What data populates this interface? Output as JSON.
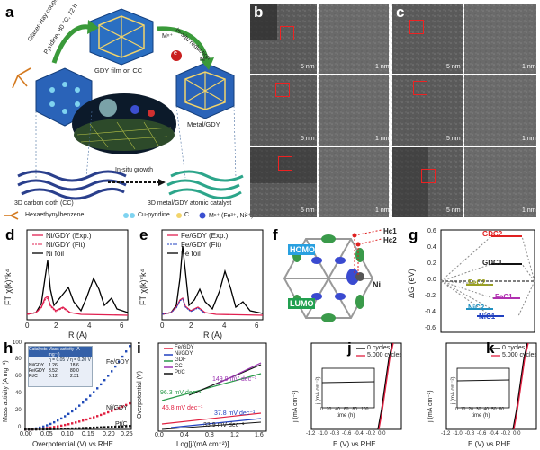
{
  "panel_letters": [
    "a",
    "b",
    "c",
    "d",
    "e",
    "f",
    "g",
    "h",
    "i",
    "j",
    "k"
  ],
  "schematic": {
    "glaser_text": "Glaser-Hay coupling reaction",
    "pyridine_text": "Pyridine, 80 °C, 72 h",
    "gdy_film": "GDY film on  CC",
    "insitu_reduction": "In-situ reduction",
    "m_n_plus": "Mⁿ⁺",
    "e_label": "e",
    "m_zero": "M⁰",
    "metal_gdy": "Metal/GDY",
    "carbon_cloth": "3D carbon cloth (CC)",
    "insitu_growth": "In-situ growth",
    "atomic_catalyst": "3D metal/GDY atomic catalyst",
    "legend_hexa": "Hexaethynylbenzene",
    "legend_cu": "Cu-pyridine",
    "legend_c": "C",
    "legend_m": "Mⁿ⁺ (Fe³⁺, Ni²⁺)"
  },
  "tem": {
    "scale_5nm": "5 nm",
    "scale_1nm": "1 nm"
  },
  "panel_d": {
    "ylabel": "FT χ(k)*k⁴",
    "xlabel": "R (Å)",
    "legend": [
      "Ni/GDY (Exp.)",
      "Ni/GDY (Fit)",
      "Ni foil"
    ],
    "xticks": [
      "0",
      "2",
      "4",
      "6"
    ]
  },
  "panel_e": {
    "ylabel": "FT χ(k)*k⁴",
    "xlabel": "R (Å)",
    "legend": [
      "Fe/GDY (Exp.)",
      "Fe/GDY (Fit)",
      "Fe foil"
    ],
    "xticks": [
      "0",
      "2",
      "4",
      "6"
    ]
  },
  "panel_f": {
    "hc1": "Hc1",
    "hc2": "Hc2",
    "homo": "HOMO",
    "lumo": "LUMO",
    "ni": "Ni"
  },
  "panel_g": {
    "ylabel": "ΔG (eV)",
    "yticks": [
      "0.6",
      "0.4",
      "0.2",
      "0.0",
      "-0.2",
      "-0.4",
      "-0.6"
    ],
    "levels": [
      "GDC2",
      "GDC1",
      "FeC2",
      "FeC1",
      "NiC2",
      "NiC1"
    ],
    "colors": {
      "GDC2": "#e02020",
      "GDC1": "#111111",
      "FeC2": "#9aa020",
      "FeC1": "#b030b0",
      "NiC2": "#2090c0",
      "NiC1": "#2040c0"
    }
  },
  "panel_h": {
    "ylabel": "Mass activity (A mg⁻¹)",
    "xlabel": "Overpotential (V) vs RHE",
    "xticks": [
      "0.00",
      "0.05",
      "0.10",
      "0.15",
      "0.20",
      "0.25"
    ],
    "yticks": [
      "0",
      "20",
      "40",
      "60",
      "80",
      "100"
    ],
    "series_labels": [
      "Fe/GDY",
      "Ni/GDY",
      "Pt/C"
    ],
    "table": {
      "headers": [
        "Catalysts",
        "Mass activity (A mg⁻¹)"
      ],
      "subheaders": [
        "η = 0.05 V",
        "η = 0.20 V"
      ],
      "rows": [
        [
          "Ni/GDY",
          "1.26",
          "18.6"
        ],
        [
          "Fe/GDY",
          "3.52",
          "80.0"
        ],
        [
          "Pt/C",
          "0.12",
          "2.31"
        ]
      ]
    }
  },
  "panel_i": {
    "ylabel": "Overpotential (V)",
    "xlabel": "Log[j/(mA cm⁻²)]",
    "xticks": [
      "0.0",
      "0.4",
      "0.8",
      "1.2",
      "1.6"
    ],
    "legend": [
      "Fe/GDY",
      "Ni/GDY",
      "GDF",
      "CC",
      "Pt/C"
    ],
    "tafels": [
      "149.9 mV dec⁻¹",
      "96.3 mV dec⁻¹",
      "45.8 mV dec⁻¹",
      "37.8 mV dec⁻¹",
      "33.9 mV dec⁻¹"
    ]
  },
  "panel_j": {
    "ylabel": "j (mA cm⁻²)",
    "xlabel": "E (V) vs RHE",
    "xticks": [
      "-1.2",
      "-1.0",
      "-0.8",
      "-0.6",
      "-0.4",
      "-0.2",
      "0.0"
    ],
    "legend": [
      "0 cycles",
      "5,000 cycles"
    ],
    "inset_xlabel": "time (h)",
    "inset_ylabel": "j (mA cm⁻²)",
    "inset_xticks": [
      "0",
      "20",
      "40",
      "60",
      "80",
      "100"
    ]
  },
  "panel_k": {
    "ylabel": "j (mA cm⁻²)",
    "xlabel": "E (V) vs RHE",
    "xticks": [
      "-1.2",
      "-1.0",
      "-0.8",
      "-0.6",
      "-0.4",
      "-0.2",
      "0.0"
    ],
    "legend": [
      "0 cycles",
      "5,000 cycles"
    ],
    "inset_xlabel": "time (h)",
    "inset_ylabel": "j (mA cm⁻²)",
    "inset_xticks": [
      "0",
      "10",
      "20",
      "30",
      "40",
      "50",
      "60"
    ]
  }
}
